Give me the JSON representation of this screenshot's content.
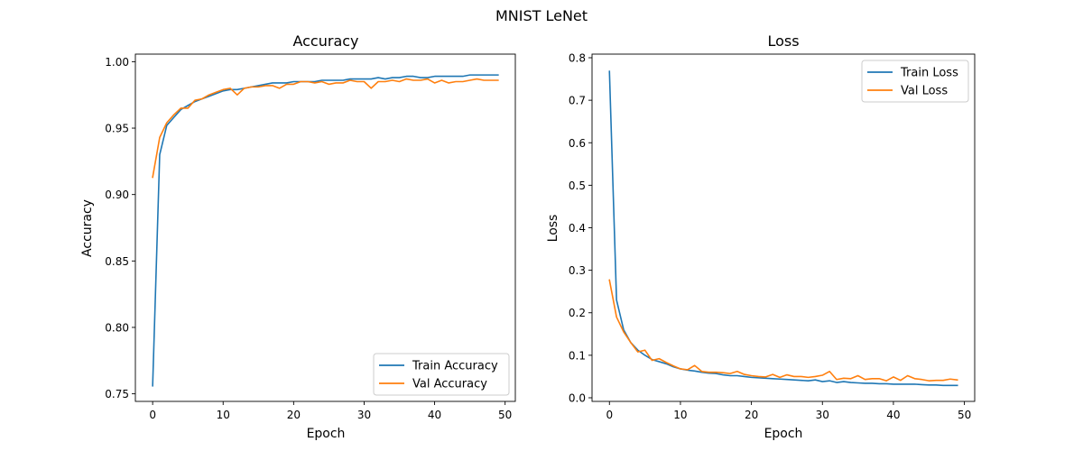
{
  "suptitle": "MNIST LeNet",
  "chart_data": [
    {
      "type": "line",
      "title": "Accuracy",
      "xlabel": "Epoch",
      "ylabel": "Accuracy",
      "xlim": [
        -2.45,
        51.45
      ],
      "ylim": [
        0.7443,
        1.0057
      ],
      "xticks": [
        0,
        10,
        20,
        30,
        40,
        50
      ],
      "yticks": [
        0.75,
        0.8,
        0.85,
        0.9,
        0.95,
        1.0
      ],
      "ytick_labels": [
        "0.75",
        "0.80",
        "0.85",
        "0.90",
        "0.95",
        "1.00"
      ],
      "legend": "lower-right",
      "grid": false,
      "x": [
        0,
        1,
        2,
        3,
        4,
        5,
        6,
        7,
        8,
        9,
        10,
        11,
        12,
        13,
        14,
        15,
        16,
        17,
        18,
        19,
        20,
        21,
        22,
        23,
        24,
        25,
        26,
        27,
        28,
        29,
        30,
        31,
        32,
        33,
        34,
        35,
        36,
        37,
        38,
        39,
        40,
        41,
        42,
        43,
        44,
        45,
        46,
        47,
        48,
        49
      ],
      "series": [
        {
          "name": "Train Accuracy",
          "color": "#1f77b4",
          "values": [
            0.756,
            0.93,
            0.952,
            0.958,
            0.964,
            0.967,
            0.97,
            0.972,
            0.974,
            0.976,
            0.978,
            0.979,
            0.979,
            0.98,
            0.981,
            0.982,
            0.983,
            0.984,
            0.984,
            0.984,
            0.985,
            0.985,
            0.985,
            0.985,
            0.986,
            0.986,
            0.986,
            0.986,
            0.987,
            0.987,
            0.987,
            0.987,
            0.988,
            0.987,
            0.988,
            0.988,
            0.989,
            0.989,
            0.988,
            0.988,
            0.989,
            0.989,
            0.989,
            0.989,
            0.989,
            0.99,
            0.99,
            0.99,
            0.99,
            0.99
          ]
        },
        {
          "name": "Val Accuracy",
          "color": "#ff7f0e",
          "values": [
            0.913,
            0.943,
            0.954,
            0.96,
            0.965,
            0.965,
            0.971,
            0.972,
            0.975,
            0.977,
            0.979,
            0.98,
            0.975,
            0.98,
            0.981,
            0.981,
            0.982,
            0.982,
            0.98,
            0.983,
            0.983,
            0.985,
            0.985,
            0.984,
            0.985,
            0.983,
            0.984,
            0.984,
            0.986,
            0.985,
            0.985,
            0.98,
            0.985,
            0.985,
            0.986,
            0.985,
            0.987,
            0.986,
            0.986,
            0.987,
            0.984,
            0.986,
            0.984,
            0.985,
            0.985,
            0.986,
            0.987,
            0.986,
            0.986,
            0.986
          ]
        }
      ]
    },
    {
      "type": "line",
      "title": "Loss",
      "xlabel": "Epoch",
      "ylabel": "Loss",
      "xlim": [
        -2.45,
        51.45
      ],
      "ylim": [
        -0.0085,
        0.8085
      ],
      "xticks": [
        0,
        10,
        20,
        30,
        40,
        50
      ],
      "yticks": [
        0.0,
        0.1,
        0.2,
        0.3,
        0.4,
        0.5,
        0.6,
        0.7,
        0.8
      ],
      "ytick_labels": [
        "0.0",
        "0.1",
        "0.2",
        "0.3",
        "0.4",
        "0.5",
        "0.6",
        "0.7",
        "0.8"
      ],
      "legend": "upper-right",
      "grid": false,
      "x": [
        0,
        1,
        2,
        3,
        4,
        5,
        6,
        7,
        8,
        9,
        10,
        11,
        12,
        13,
        14,
        15,
        16,
        17,
        18,
        19,
        20,
        21,
        22,
        23,
        24,
        25,
        26,
        27,
        28,
        29,
        30,
        31,
        32,
        33,
        34,
        35,
        36,
        37,
        38,
        39,
        40,
        41,
        42,
        43,
        44,
        45,
        46,
        47,
        48,
        49
      ],
      "series": [
        {
          "name": "Train Loss",
          "color": "#1f77b4",
          "values": [
            0.768,
            0.23,
            0.16,
            0.13,
            0.112,
            0.1,
            0.09,
            0.085,
            0.08,
            0.073,
            0.068,
            0.065,
            0.063,
            0.06,
            0.058,
            0.057,
            0.054,
            0.052,
            0.052,
            0.05,
            0.048,
            0.047,
            0.046,
            0.045,
            0.044,
            0.043,
            0.042,
            0.041,
            0.04,
            0.042,
            0.038,
            0.04,
            0.036,
            0.038,
            0.036,
            0.035,
            0.034,
            0.034,
            0.033,
            0.033,
            0.032,
            0.032,
            0.032,
            0.032,
            0.031,
            0.03,
            0.03,
            0.029,
            0.029,
            0.029
          ]
        },
        {
          "name": "Val Loss",
          "color": "#ff7f0e",
          "values": [
            0.277,
            0.19,
            0.155,
            0.13,
            0.108,
            0.112,
            0.088,
            0.092,
            0.083,
            0.075,
            0.068,
            0.066,
            0.076,
            0.062,
            0.06,
            0.06,
            0.059,
            0.057,
            0.062,
            0.055,
            0.052,
            0.05,
            0.049,
            0.055,
            0.048,
            0.054,
            0.05,
            0.05,
            0.048,
            0.05,
            0.053,
            0.062,
            0.043,
            0.046,
            0.045,
            0.052,
            0.043,
            0.045,
            0.045,
            0.04,
            0.049,
            0.041,
            0.052,
            0.045,
            0.043,
            0.04,
            0.041,
            0.041,
            0.044,
            0.042
          ]
        }
      ]
    }
  ]
}
